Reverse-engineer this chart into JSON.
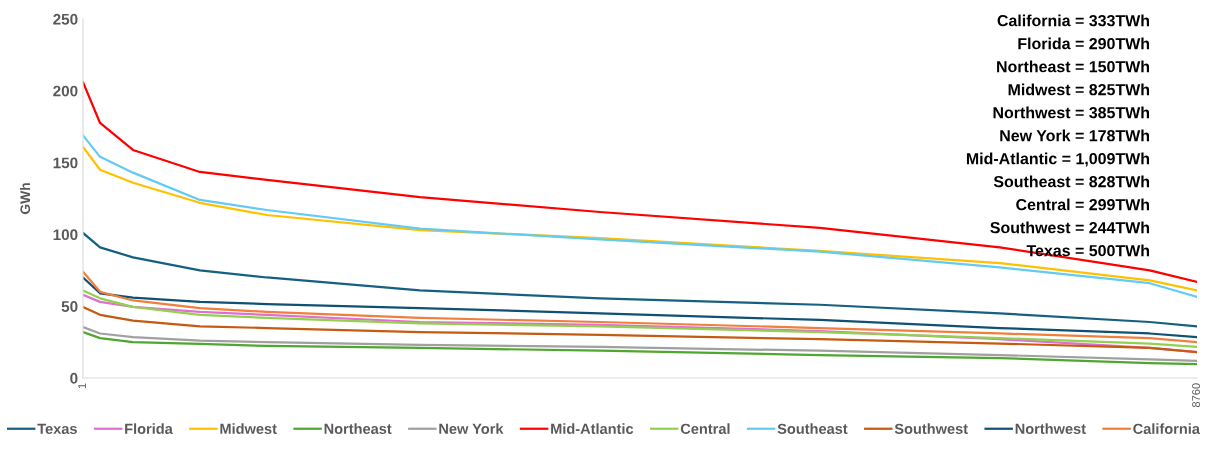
{
  "chart_data": {
    "type": "line",
    "ylabel": "GWh",
    "x": [
      1,
      135,
      394,
      920,
      1447,
      2650,
      4065,
      5794,
      7209,
      8388,
      8760
    ],
    "xlim": [
      1,
      8760
    ],
    "xticks": [
      1,
      8760
    ],
    "ylim": [
      0,
      250
    ],
    "yticks": [
      0,
      50,
      100,
      150,
      200,
      250
    ],
    "grid": false,
    "legend": "bottom",
    "marker": "none",
    "line_style": "solid",
    "series": [
      {
        "name": "Texas",
        "color": "#156082",
        "values": [
          101,
          91,
          84,
          75,
          70,
          61,
          55.5,
          51,
          45,
          39,
          36
        ]
      },
      {
        "name": "Florida",
        "color": "#e06fd2",
        "values": [
          58,
          53,
          49.5,
          46,
          44,
          39,
          37,
          32.7,
          27,
          21,
          18
        ]
      },
      {
        "name": "Midwest",
        "color": "#ffc000",
        "values": [
          161,
          145,
          136,
          122,
          113.5,
          103,
          97.5,
          88.5,
          80,
          68,
          61
        ]
      },
      {
        "name": "Northeast",
        "color": "#4ea72e",
        "values": [
          32,
          27.8,
          25,
          23.7,
          22.3,
          21,
          19,
          16,
          13.9,
          10.4,
          9.7
        ]
      },
      {
        "name": "New York",
        "color": "#a0a0a0",
        "values": [
          35.5,
          31,
          28.5,
          26,
          25,
          23,
          21.6,
          19,
          16,
          13,
          12
        ]
      },
      {
        "name": "Mid-Atlantic",
        "color": "#ff0000",
        "values": [
          206,
          177.6,
          158.8,
          143.5,
          137.9,
          126,
          115.6,
          104.5,
          91,
          75,
          67
        ]
      },
      {
        "name": "Central",
        "color": "#92d050",
        "values": [
          61,
          55.5,
          49.5,
          44,
          41.8,
          38,
          36,
          32,
          27.8,
          24,
          21.6
        ]
      },
      {
        "name": "Southeast",
        "color": "#61cbf3",
        "values": [
          169,
          154,
          143,
          124,
          117,
          104,
          96.5,
          88,
          77,
          66,
          56.5
        ]
      },
      {
        "name": "Southwest",
        "color": "#c55a11",
        "values": [
          49.5,
          44,
          40,
          36,
          34.8,
          32,
          30,
          27,
          24,
          21,
          18
        ]
      },
      {
        "name": "Northwest",
        "color": "#0f5173",
        "values": [
          70,
          59,
          56,
          53,
          51.5,
          48.7,
          45,
          40.4,
          34.8,
          31,
          28.5
        ]
      },
      {
        "name": "California",
        "color": "#f07f3c",
        "values": [
          74,
          60,
          54,
          48.7,
          46,
          41.8,
          39,
          34.8,
          31,
          27.8,
          25
        ]
      }
    ],
    "annotations": [
      "California = 333TWh",
      "Florida = 290TWh",
      "Northeast = 150TWh",
      "Midwest = 825TWh",
      "Northwest = 385TWh",
      "New York = 178TWh",
      "Mid-Atlantic = 1,009TWh",
      "Southeast = 828TWh",
      "Central = 299TWh",
      "Southwest = 244TWh",
      "Texas = 500TWh"
    ]
  }
}
